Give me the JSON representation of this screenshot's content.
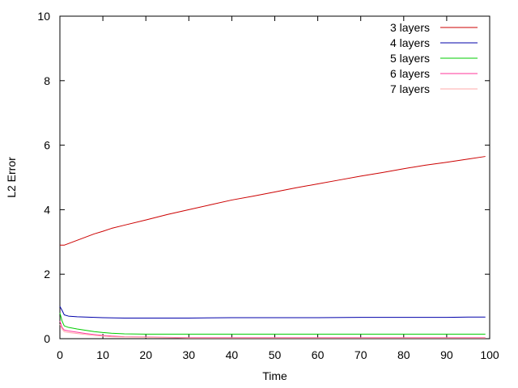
{
  "chart_data": {
    "type": "line",
    "title": "",
    "xlabel": "Time",
    "ylabel": "L2 Error",
    "xlim": [
      0,
      100
    ],
    "ylim": [
      0,
      10
    ],
    "x_ticks": [
      "0",
      "10",
      "20",
      "30",
      "40",
      "50",
      "60",
      "70",
      "80",
      "90",
      "100"
    ],
    "y_ticks": [
      "0",
      "2",
      "4",
      "6",
      "8",
      "10"
    ],
    "grid": false,
    "legend_position": "top-right",
    "series": [
      {
        "name": "3 layers",
        "color": "#cc0000",
        "x": [
          0,
          1,
          2,
          4,
          6,
          8,
          10,
          12,
          15,
          20,
          25,
          30,
          35,
          40,
          45,
          50,
          55,
          60,
          65,
          70,
          75,
          80,
          85,
          90,
          95,
          99
        ],
        "y": [
          2.9,
          2.9,
          2.95,
          3.05,
          3.15,
          3.25,
          3.33,
          3.42,
          3.52,
          3.68,
          3.85,
          4.0,
          4.15,
          4.3,
          4.42,
          4.55,
          4.68,
          4.8,
          4.92,
          5.04,
          5.15,
          5.27,
          5.38,
          5.47,
          5.57,
          5.65
        ]
      },
      {
        "name": "4 layers",
        "color": "#0000aa",
        "x": [
          0,
          0.5,
          1,
          2,
          4,
          6,
          8,
          10,
          15,
          20,
          30,
          40,
          50,
          60,
          70,
          80,
          90,
          95,
          99
        ],
        "y": [
          1.0,
          0.88,
          0.74,
          0.7,
          0.68,
          0.67,
          0.66,
          0.65,
          0.64,
          0.64,
          0.64,
          0.65,
          0.65,
          0.65,
          0.66,
          0.66,
          0.66,
          0.67,
          0.67
        ]
      },
      {
        "name": "5 layers",
        "color": "#00cc00",
        "x": [
          0,
          0.5,
          1,
          2,
          4,
          6,
          8,
          10,
          12,
          15,
          20,
          30,
          40,
          50,
          60,
          70,
          80,
          90,
          99
        ],
        "y": [
          0.8,
          0.55,
          0.4,
          0.35,
          0.3,
          0.26,
          0.22,
          0.19,
          0.17,
          0.15,
          0.14,
          0.14,
          0.14,
          0.14,
          0.14,
          0.14,
          0.14,
          0.14,
          0.14
        ]
      },
      {
        "name": "6 layers",
        "color": "#ff3399",
        "x": [
          0,
          0.5,
          1,
          2,
          4,
          6,
          8,
          10,
          12,
          15,
          20,
          25,
          30,
          40,
          50,
          60,
          70,
          80,
          90,
          99
        ],
        "y": [
          0.55,
          0.35,
          0.27,
          0.24,
          0.2,
          0.16,
          0.13,
          0.1,
          0.08,
          0.06,
          0.05,
          0.04,
          0.03,
          0.03,
          0.03,
          0.03,
          0.03,
          0.03,
          0.03,
          0.03
        ]
      },
      {
        "name": "7 layers",
        "color": "#ffaaaa",
        "x": [
          0,
          0.5,
          1,
          2,
          4,
          6,
          8,
          10,
          12,
          15,
          20,
          25,
          30,
          40,
          50,
          60,
          70,
          80,
          90,
          99
        ],
        "y": [
          0.45,
          0.3,
          0.22,
          0.19,
          0.16,
          0.13,
          0.1,
          0.08,
          0.06,
          0.05,
          0.04,
          0.03,
          0.02,
          0.02,
          0.02,
          0.02,
          0.02,
          0.02,
          0.02,
          0.02
        ]
      }
    ]
  }
}
